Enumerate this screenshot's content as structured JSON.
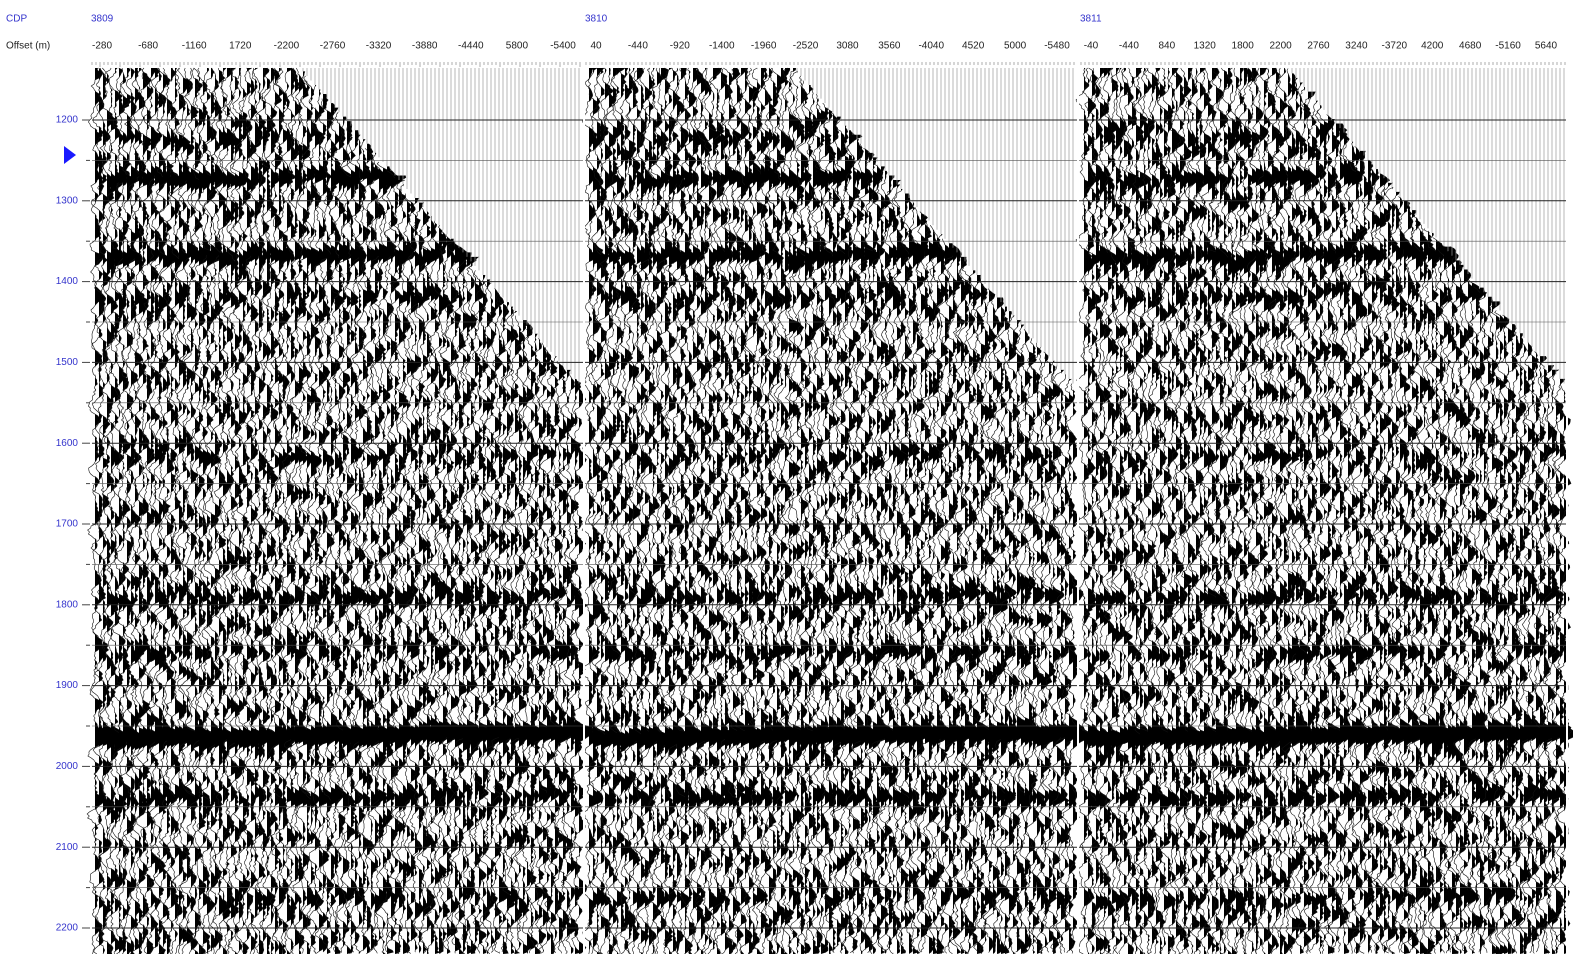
{
  "header": {
    "cdp_label": "CDP",
    "offset_label": "Offset (m)"
  },
  "panels": [
    {
      "cdp": "3809",
      "offsets": [
        "-280",
        "-680",
        "-1160",
        "1720",
        "-2200",
        "-2760",
        "-3320",
        "-3880",
        "-4440",
        "5800",
        "-5400"
      ]
    },
    {
      "cdp": "3810",
      "offsets": [
        "40",
        "-440",
        "-920",
        "-1400",
        "-1960",
        "-2520",
        "3080",
        "3560",
        "-4040",
        "4520",
        "5000",
        "-5480"
      ]
    },
    {
      "cdp": "3811",
      "offsets": [
        "-40",
        "-440",
        "840",
        "1320",
        "1800",
        "2200",
        "2760",
        "3240",
        "-3720",
        "4200",
        "4680",
        "-5160",
        "5640"
      ]
    }
  ],
  "time_labels": [
    "1200",
    "1300",
    "1400",
    "1500",
    "1600",
    "1700",
    "1800",
    "1900",
    "2000",
    "2100",
    "2200"
  ]
}
